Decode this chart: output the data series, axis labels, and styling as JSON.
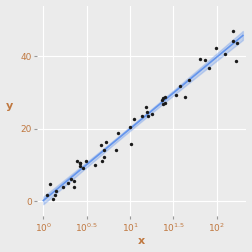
{
  "title": "",
  "xlabel": "x",
  "ylabel": "y",
  "bg_color": "#EBEBEB",
  "grid_color": "#FFFFFF",
  "point_color": "#1a1a1a",
  "line_color": "#6495ED",
  "ci_color": "#6495ED",
  "ci_alpha": 0.3,
  "xlim_log": [
    1.0,
    200.0
  ],
  "ylim": [
    -4,
    54
  ],
  "yticks": [
    0,
    20,
    40
  ],
  "xtick_positions": [
    1.0,
    3.162,
    10.0,
    31.62,
    100.0
  ],
  "xtick_labels": [
    "$10^0$",
    "$10^{0.5}$",
    "$10^1$",
    "$10^{1.5}$",
    "$10^2$"
  ],
  "axis_label_color": "#C07840",
  "tick_label_color": "#C07840",
  "n_points": 50,
  "seed": 42,
  "slope": 20.0,
  "intercept": 0.0,
  "noise_std": 2.2
}
